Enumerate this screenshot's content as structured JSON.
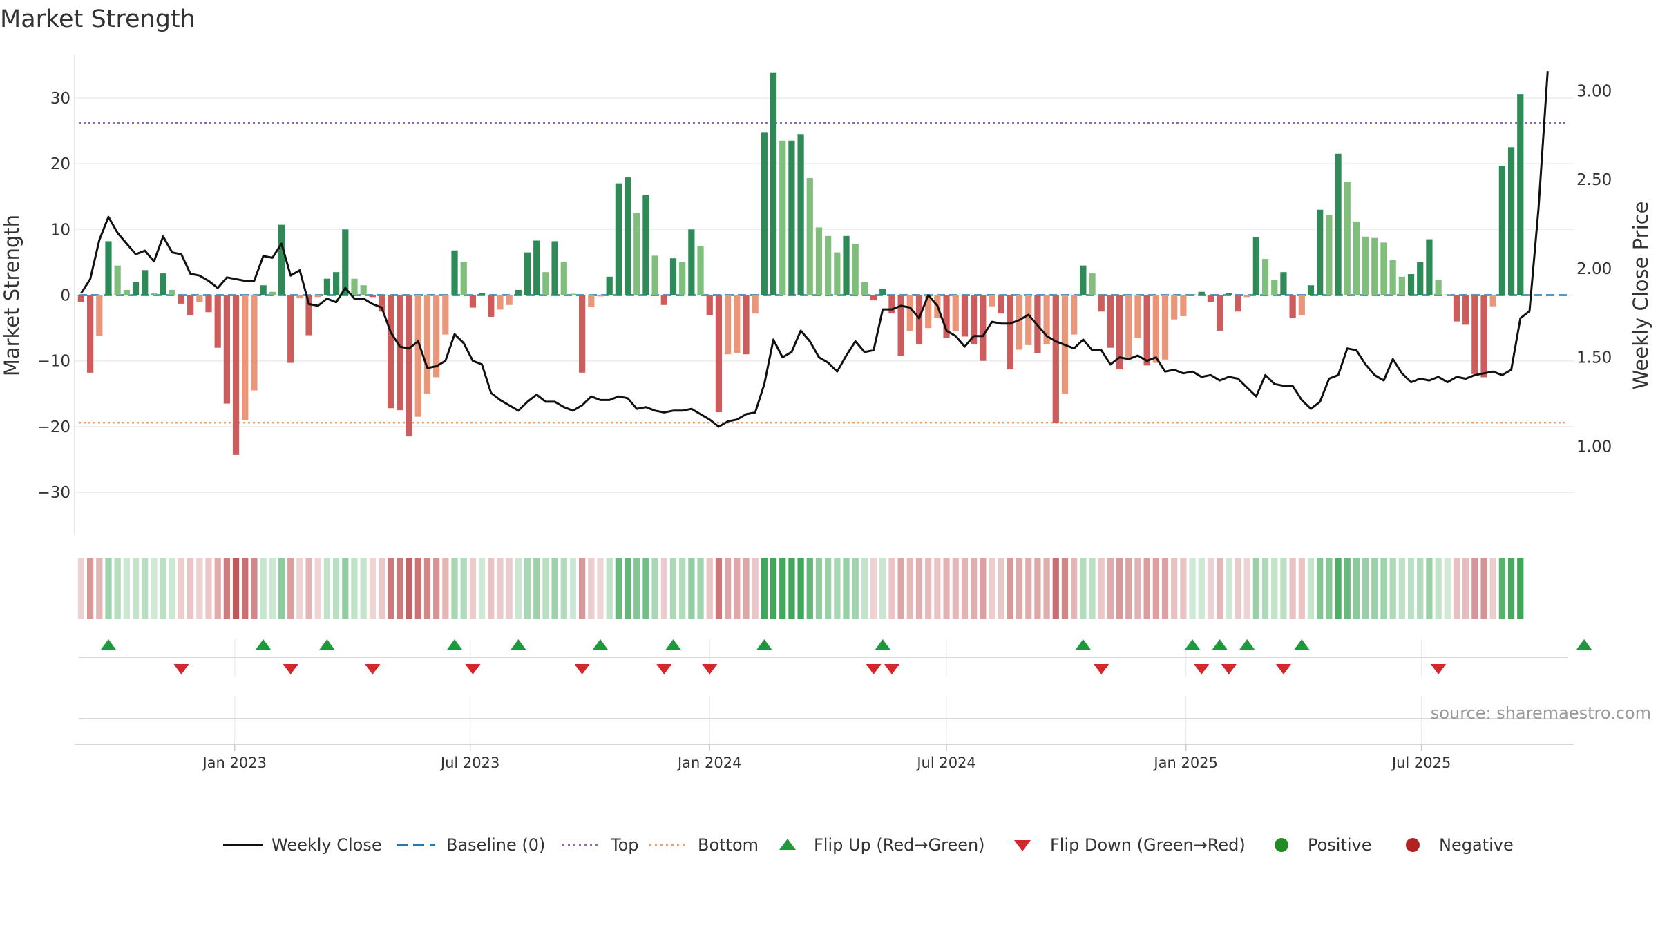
{
  "chart_data": {
    "type": "bar",
    "title": "Market Strength",
    "ylabel": "Market Strength",
    "y2label": "Weekly Close Price",
    "ylim": [
      -36.5,
      36.5
    ],
    "y2lim": [
      0.5,
      3.2
    ],
    "yticks": [
      {
        "value": 30,
        "label": "30"
      },
      {
        "value": 20,
        "label": "20"
      },
      {
        "value": 10,
        "label": "10"
      },
      {
        "value": 0,
        "label": "0"
      },
      {
        "value": -10,
        "label": "−10"
      },
      {
        "value": -20,
        "label": "−20"
      },
      {
        "value": -30,
        "label": "−30"
      }
    ],
    "y2ticks": [
      {
        "value": 3.0,
        "label": "3.00"
      },
      {
        "value": 2.5,
        "label": "2.50"
      },
      {
        "value": 2.0,
        "label": "2.00"
      },
      {
        "value": 1.5,
        "label": "1.50"
      },
      {
        "value": 1.0,
        "label": "1.00"
      }
    ],
    "x_start": "2022-09-05",
    "x_range": [
      "2022-08-31",
      "2025-10-26"
    ],
    "x_ticks": [
      {
        "date": "2023-01-01",
        "label": "Jan 2023"
      },
      {
        "date": "2023-07-01",
        "label": "Jul 2023"
      },
      {
        "date": "2024-01-01",
        "label": "Jan 2024"
      },
      {
        "date": "2024-07-01",
        "label": "Jul 2024"
      },
      {
        "date": "2025-01-01",
        "label": "Jan 2025"
      },
      {
        "date": "2025-07-01",
        "label": "Jul 2025"
      }
    ],
    "top": 26.2,
    "bottom": -19.4,
    "baseline": 0,
    "strength": [
      -1,
      -11.8,
      -6.2,
      8.2,
      4.5,
      0.8,
      2,
      3.8,
      0.3,
      3.3,
      0.8,
      -1.3,
      -3.1,
      -1,
      -2.6,
      -8,
      -16.5,
      -24.3,
      -19,
      -14.5,
      1.5,
      0.5,
      10.7,
      -10.3,
      -0.5,
      -6.1,
      -0.3,
      2.5,
      3.5,
      10,
      2.5,
      1.5,
      -0.3,
      -2.5,
      -17.2,
      -17.5,
      -21.5,
      -18.5,
      -15,
      -12.5,
      -6,
      6.8,
      5,
      -1.9,
      0.3,
      -3.3,
      -2.2,
      -1.5,
      0.8,
      6.5,
      8.3,
      3.5,
      8.2,
      5,
      0.2,
      -11.8,
      -1.8,
      -0.2,
      2.8,
      17,
      17.9,
      12.5,
      15.2,
      6,
      -1.5,
      5.6,
      5,
      10,
      7.5,
      -3,
      -17.8,
      -9,
      -8.8,
      -9,
      -2.8,
      24.8,
      33.8,
      23.5,
      23.5,
      24.5,
      17.8,
      10.3,
      9,
      6.5,
      9,
      7.8,
      2,
      -0.8,
      1,
      -2.8,
      -9.2,
      -5.5,
      -7.5,
      -5,
      -3.5,
      -6.5,
      -5.5,
      -6.3,
      -7.5,
      -10,
      -1.7,
      -2.8,
      -11.3,
      -8.3,
      -7.6,
      -8.8,
      -7.5,
      -19.5,
      -15,
      -6,
      4.5,
      3.3,
      -2.5,
      -8,
      -11.3,
      -9.5,
      -6.5,
      -10.7,
      -10.3,
      -9.8,
      -3.7,
      -3.2,
      0.1,
      0.5,
      -1,
      -5.4,
      0.3,
      -2.5,
      -0.3,
      8.8,
      5.5,
      2.3,
      3.5,
      -3.5,
      -3,
      1.5,
      13,
      12.2,
      21.5,
      17.2,
      11.2,
      8.9,
      8.7,
      8,
      5.3,
      2.8,
      3.2,
      5,
      8.5,
      2.3,
      0.1,
      -4,
      -4.5,
      -12,
      -12.5,
      -1.7,
      19.7,
      22.5,
      30.6
    ],
    "weekly_close": [
      1.86,
      1.94,
      2.16,
      2.29,
      2.2,
      2.14,
      2.08,
      2.1,
      2.04,
      2.18,
      2.09,
      2.08,
      1.97,
      1.96,
      1.93,
      1.89,
      1.95,
      1.94,
      1.93,
      1.93,
      2.07,
      2.06,
      2.14,
      1.96,
      1.99,
      1.8,
      1.79,
      1.83,
      1.81,
      1.89,
      1.83,
      1.83,
      1.8,
      1.78,
      1.64,
      1.56,
      1.55,
      1.59,
      1.44,
      1.45,
      1.48,
      1.63,
      1.58,
      1.48,
      1.46,
      1.3,
      1.26,
      1.23,
      1.2,
      1.25,
      1.29,
      1.25,
      1.25,
      1.22,
      1.2,
      1.23,
      1.28,
      1.26,
      1.26,
      1.28,
      1.27,
      1.21,
      1.22,
      1.2,
      1.19,
      1.2,
      1.2,
      1.21,
      1.18,
      1.15,
      1.11,
      1.14,
      1.15,
      1.18,
      1.19,
      1.35,
      1.6,
      1.5,
      1.53,
      1.65,
      1.59,
      1.5,
      1.47,
      1.42,
      1.51,
      1.59,
      1.53,
      1.54,
      1.77,
      1.77,
      1.79,
      1.78,
      1.72,
      1.85,
      1.79,
      1.65,
      1.62,
      1.56,
      1.62,
      1.62,
      1.7,
      1.69,
      1.69,
      1.71,
      1.74,
      1.68,
      1.62,
      1.59,
      1.57,
      1.55,
      1.6,
      1.54,
      1.54,
      1.46,
      1.5,
      1.49,
      1.51,
      1.48,
      1.5,
      1.42,
      1.43,
      1.41,
      1.42,
      1.39,
      1.4,
      1.37,
      1.39,
      1.38,
      1.33,
      1.28,
      1.4,
      1.35,
      1.34,
      1.34,
      1.26,
      1.21,
      1.25,
      1.38,
      1.4,
      1.55,
      1.54,
      1.46,
      1.4,
      1.37,
      1.49,
      1.41,
      1.36,
      1.38,
      1.37,
      1.39,
      1.36,
      1.39,
      1.38,
      1.4,
      1.41,
      1.42,
      1.4,
      1.43,
      1.72,
      1.76,
      2.34,
      3.11
    ],
    "flip_up_weeks": [
      3,
      20,
      27,
      41,
      48,
      57,
      65,
      75,
      88,
      110,
      122,
      125,
      128,
      134,
      165
    ],
    "flip_down_weeks": [
      11,
      23,
      32,
      43,
      55,
      64,
      69,
      87,
      89,
      112,
      123,
      126,
      132,
      149
    ],
    "legend": [
      {
        "label": "Weekly Close",
        "kind": "line",
        "color": "#111111"
      },
      {
        "label": "Baseline (0)",
        "kind": "dash",
        "color": "#1f77b4"
      },
      {
        "label": "Top",
        "kind": "dot",
        "color": "#9467bd"
      },
      {
        "label": "Bottom",
        "kind": "dot",
        "color": "#e8a064"
      },
      {
        "label": "Flip Up (Red→Green)",
        "kind": "tri-up",
        "color": "#1e9a3c"
      },
      {
        "label": "Flip Down (Green→Red)",
        "kind": "tri-down",
        "color": "#d62728"
      },
      {
        "label": "Positive",
        "kind": "circle",
        "color": "#228b22"
      },
      {
        "label": "Negative",
        "kind": "circle",
        "color": "#b22222"
      }
    ],
    "legend_position": "bottom-center",
    "grid": true
  },
  "source": "source: sharemaestro.com",
  "colors": {
    "pos_dark": "#2e8b57",
    "pos_light": "#7fbf7b",
    "neg_dark": "#cd5c5c",
    "neg_light": "#e9967a",
    "weekly_close": "#111111",
    "baseline": "#1f77b4",
    "top": "#9467bd",
    "bottom": "#e8a064",
    "flip_up": "#1e9a3c",
    "flip_down": "#d62728"
  }
}
